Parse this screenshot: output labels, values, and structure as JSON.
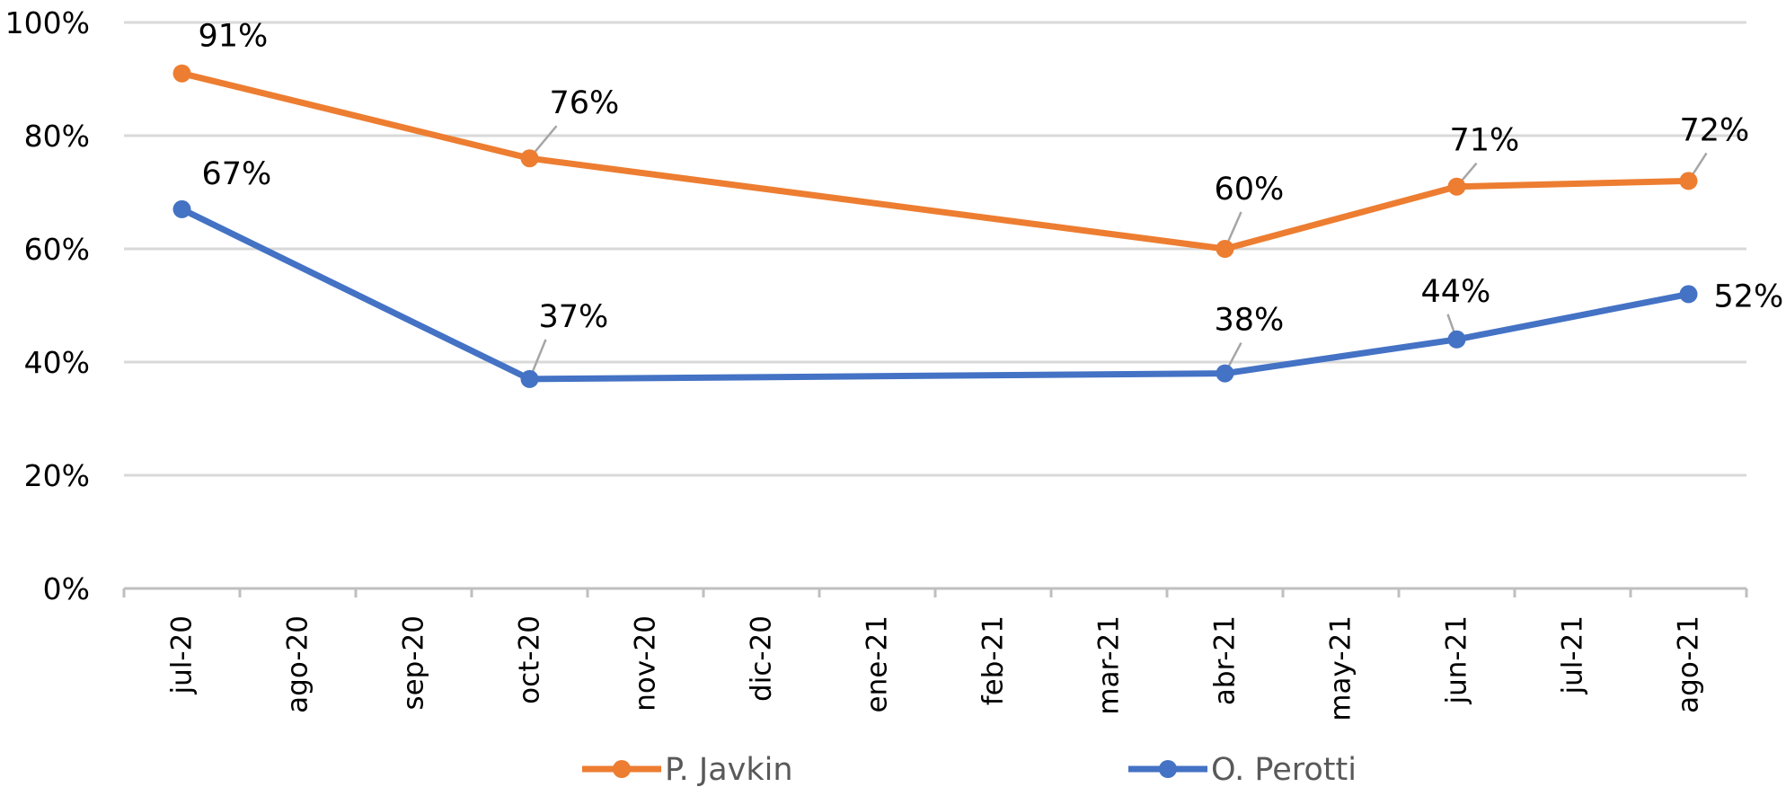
{
  "chart_data": {
    "type": "line",
    "categories": [
      "jul-20",
      "ago-20",
      "sep-20",
      "oct-20",
      "nov-20",
      "dic-20",
      "ene-21",
      "feb-21",
      "mar-21",
      "abr-21",
      "may-21",
      "jun-21",
      "jul-21",
      "ago-21"
    ],
    "ylim": [
      0,
      100
    ],
    "y_ticks": [
      "0%",
      "20%",
      "40%",
      "60%",
      "80%",
      "100%"
    ],
    "y_tick_values": [
      0,
      20,
      40,
      60,
      80,
      100
    ],
    "grid": true,
    "legend_position": "bottom",
    "series": [
      {
        "name": "P. Javkin",
        "color": "#ED7D31",
        "points": [
          {
            "x": "jul-20",
            "y": 91,
            "label": "91%"
          },
          {
            "x": "oct-20",
            "y": 76,
            "label": "76%"
          },
          {
            "x": "abr-21",
            "y": 60,
            "label": "60%"
          },
          {
            "x": "jun-21",
            "y": 71,
            "label": "71%"
          },
          {
            "x": "ago-21",
            "y": 72,
            "label": "72%"
          }
        ]
      },
      {
        "name": "O. Perotti",
        "color": "#4472C4",
        "points": [
          {
            "x": "jul-20",
            "y": 67,
            "label": "67%"
          },
          {
            "x": "oct-20",
            "y": 37,
            "label": "37%"
          },
          {
            "x": "abr-21",
            "y": 38,
            "label": "38%"
          },
          {
            "x": "jun-21",
            "y": 44,
            "label": "44%"
          },
          {
            "x": "ago-21",
            "y": 52,
            "label": "52%"
          }
        ]
      }
    ]
  }
}
